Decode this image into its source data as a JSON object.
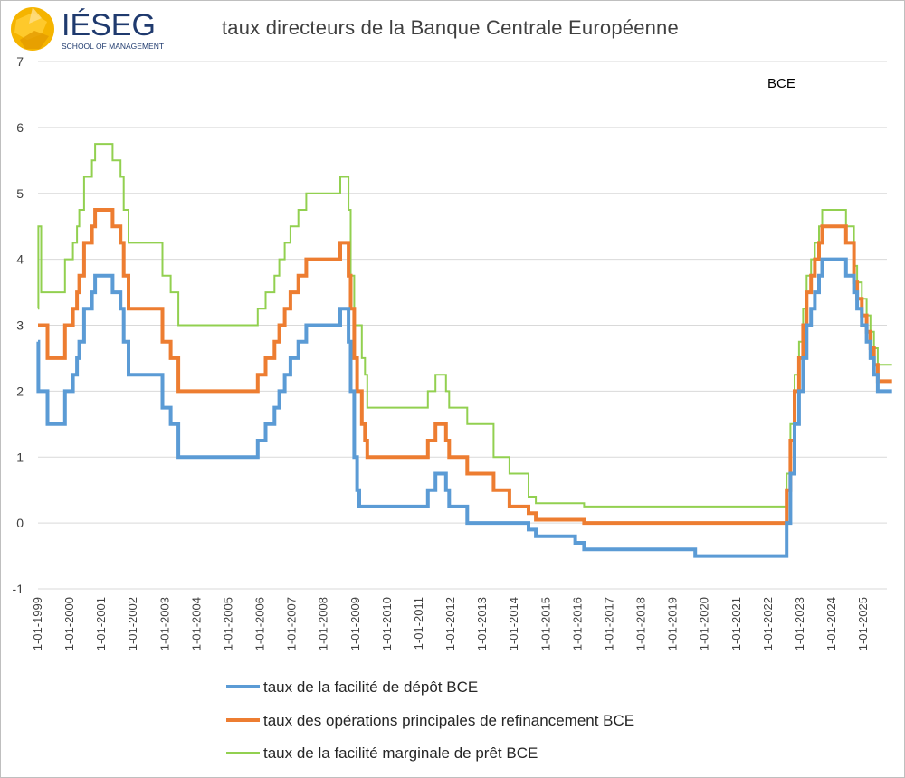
{
  "header": {
    "logo_name": "IÉSEG",
    "logo_subtitle": "SCHOOL OF MANAGEMENT",
    "title": "taux directeurs de la Banque Centrale Européenne"
  },
  "colors": {
    "deposit": "#5b9bd5",
    "refi": "#ed7d31",
    "marginal": "#92d050",
    "grid": "#d9d9d9",
    "logo_yellow": "#f5b400",
    "logo_blue": "#1f3a6e"
  },
  "chart_data": {
    "type": "line",
    "title": "taux directeurs de la Banque Centrale Européenne",
    "annotation": "BCE",
    "xlabel": "",
    "ylabel": "",
    "ylim": [
      -1,
      7
    ],
    "y_ticks": [
      -1,
      0,
      1,
      2,
      3,
      4,
      5,
      6,
      7
    ],
    "xlim": [
      1999.0,
      2025.9
    ],
    "x_ticks": [
      "1-01-1999",
      "1-01-2000",
      "1-01-2001",
      "1-01-2002",
      "1-01-2003",
      "1-01-2004",
      "1-01-2005",
      "1-01-2006",
      "1-01-2007",
      "1-01-2008",
      "1-01-2009",
      "1-01-2010",
      "1-01-2011",
      "1-01-2012",
      "1-01-2013",
      "1-01-2014",
      "1-01-2015",
      "1-01-2016",
      "1-01-2017",
      "1-01-2018",
      "1-01-2019",
      "1-01-2020",
      "1-01-2021",
      "1-01-2022",
      "1-01-2023",
      "1-01-2024",
      "1-01-2025"
    ],
    "grid": true,
    "legend_position": "bottom-left",
    "series": [
      {
        "name": "taux de la facilité de dépôt BCE",
        "key": "deposit",
        "step_points": [
          [
            1999.0,
            2.75
          ],
          [
            1999.01,
            2.0
          ],
          [
            1999.3,
            1.5
          ],
          [
            1999.85,
            2.0
          ],
          [
            2000.1,
            2.25
          ],
          [
            2000.23,
            2.5
          ],
          [
            2000.3,
            2.75
          ],
          [
            2000.45,
            3.25
          ],
          [
            2000.7,
            3.5
          ],
          [
            2000.8,
            3.75
          ],
          [
            2001.35,
            3.5
          ],
          [
            2001.6,
            3.25
          ],
          [
            2001.7,
            2.75
          ],
          [
            2001.85,
            2.25
          ],
          [
            2002.92,
            1.75
          ],
          [
            2003.18,
            1.5
          ],
          [
            2003.42,
            1.0
          ],
          [
            2005.92,
            1.25
          ],
          [
            2006.17,
            1.5
          ],
          [
            2006.45,
            1.75
          ],
          [
            2006.6,
            2.0
          ],
          [
            2006.77,
            2.25
          ],
          [
            2006.95,
            2.5
          ],
          [
            2007.2,
            2.75
          ],
          [
            2007.45,
            3.0
          ],
          [
            2008.52,
            3.25
          ],
          [
            2008.78,
            2.75
          ],
          [
            2008.85,
            2.0
          ],
          [
            2008.96,
            1.0
          ],
          [
            2009.05,
            0.5
          ],
          [
            2009.12,
            0.25
          ],
          [
            2011.28,
            0.5
          ],
          [
            2011.52,
            0.75
          ],
          [
            2011.85,
            0.5
          ],
          [
            2011.95,
            0.25
          ],
          [
            2012.52,
            0.0
          ],
          [
            2014.45,
            -0.1
          ],
          [
            2014.68,
            -0.2
          ],
          [
            2015.92,
            -0.3
          ],
          [
            2016.2,
            -0.4
          ],
          [
            2019.7,
            -0.5
          ],
          [
            2022.58,
            0.0
          ],
          [
            2022.7,
            0.75
          ],
          [
            2022.83,
            1.5
          ],
          [
            2022.97,
            2.0
          ],
          [
            2023.1,
            2.5
          ],
          [
            2023.21,
            3.0
          ],
          [
            2023.35,
            3.25
          ],
          [
            2023.47,
            3.5
          ],
          [
            2023.6,
            3.75
          ],
          [
            2023.7,
            4.0
          ],
          [
            2024.45,
            3.75
          ],
          [
            2024.7,
            3.5
          ],
          [
            2024.8,
            3.25
          ],
          [
            2024.95,
            3.0
          ],
          [
            2025.1,
            2.75
          ],
          [
            2025.22,
            2.5
          ],
          [
            2025.33,
            2.25
          ],
          [
            2025.45,
            2.0
          ],
          [
            2025.9,
            2.0
          ]
        ]
      },
      {
        "name": "taux des opérations principales de refinancement BCE",
        "key": "refi",
        "step_points": [
          [
            1999.0,
            3.0
          ],
          [
            1999.3,
            2.5
          ],
          [
            1999.85,
            3.0
          ],
          [
            2000.1,
            3.25
          ],
          [
            2000.23,
            3.5
          ],
          [
            2000.3,
            3.75
          ],
          [
            2000.45,
            4.25
          ],
          [
            2000.7,
            4.5
          ],
          [
            2000.8,
            4.75
          ],
          [
            2001.35,
            4.5
          ],
          [
            2001.6,
            4.25
          ],
          [
            2001.7,
            3.75
          ],
          [
            2001.85,
            3.25
          ],
          [
            2002.92,
            2.75
          ],
          [
            2003.18,
            2.5
          ],
          [
            2003.42,
            2.0
          ],
          [
            2005.92,
            2.25
          ],
          [
            2006.17,
            2.5
          ],
          [
            2006.45,
            2.75
          ],
          [
            2006.6,
            3.0
          ],
          [
            2006.77,
            3.25
          ],
          [
            2006.95,
            3.5
          ],
          [
            2007.2,
            3.75
          ],
          [
            2007.45,
            4.0
          ],
          [
            2008.52,
            4.25
          ],
          [
            2008.78,
            3.75
          ],
          [
            2008.85,
            3.25
          ],
          [
            2008.96,
            2.5
          ],
          [
            2009.05,
            2.0
          ],
          [
            2009.2,
            1.5
          ],
          [
            2009.3,
            1.25
          ],
          [
            2009.37,
            1.0
          ],
          [
            2011.28,
            1.25
          ],
          [
            2011.52,
            1.5
          ],
          [
            2011.85,
            1.25
          ],
          [
            2011.95,
            1.0
          ],
          [
            2012.52,
            0.75
          ],
          [
            2013.35,
            0.5
          ],
          [
            2013.85,
            0.25
          ],
          [
            2014.45,
            0.15
          ],
          [
            2014.68,
            0.05
          ],
          [
            2016.2,
            0.0
          ],
          [
            2022.58,
            0.5
          ],
          [
            2022.7,
            1.25
          ],
          [
            2022.83,
            2.0
          ],
          [
            2022.97,
            2.5
          ],
          [
            2023.1,
            3.0
          ],
          [
            2023.21,
            3.5
          ],
          [
            2023.35,
            3.75
          ],
          [
            2023.47,
            4.0
          ],
          [
            2023.6,
            4.25
          ],
          [
            2023.7,
            4.5
          ],
          [
            2024.45,
            4.25
          ],
          [
            2024.7,
            3.65
          ],
          [
            2024.8,
            3.4
          ],
          [
            2024.95,
            3.15
          ],
          [
            2025.1,
            2.9
          ],
          [
            2025.22,
            2.65
          ],
          [
            2025.33,
            2.4
          ],
          [
            2025.45,
            2.15
          ],
          [
            2025.9,
            2.15
          ]
        ]
      },
      {
        "name": "taux de la facilité marginale de prêt BCE",
        "key": "marginal",
        "step_points": [
          [
            1999.0,
            3.25
          ],
          [
            1999.01,
            4.5
          ],
          [
            1999.1,
            3.5
          ],
          [
            1999.3,
            3.5
          ],
          [
            1999.85,
            4.0
          ],
          [
            2000.1,
            4.25
          ],
          [
            2000.23,
            4.5
          ],
          [
            2000.3,
            4.75
          ],
          [
            2000.45,
            5.25
          ],
          [
            2000.7,
            5.5
          ],
          [
            2000.8,
            5.75
          ],
          [
            2001.35,
            5.5
          ],
          [
            2001.6,
            5.25
          ],
          [
            2001.7,
            4.75
          ],
          [
            2001.85,
            4.25
          ],
          [
            2002.92,
            3.75
          ],
          [
            2003.18,
            3.5
          ],
          [
            2003.42,
            3.0
          ],
          [
            2005.92,
            3.25
          ],
          [
            2006.17,
            3.5
          ],
          [
            2006.45,
            3.75
          ],
          [
            2006.6,
            4.0
          ],
          [
            2006.77,
            4.25
          ],
          [
            2006.95,
            4.5
          ],
          [
            2007.2,
            4.75
          ],
          [
            2007.45,
            5.0
          ],
          [
            2008.52,
            5.25
          ],
          [
            2008.78,
            4.75
          ],
          [
            2008.85,
            3.75
          ],
          [
            2008.96,
            3.0
          ],
          [
            2009.05,
            3.0
          ],
          [
            2009.2,
            2.5
          ],
          [
            2009.3,
            2.25
          ],
          [
            2009.37,
            1.75
          ],
          [
            2011.28,
            2.0
          ],
          [
            2011.52,
            2.25
          ],
          [
            2011.85,
            2.0
          ],
          [
            2011.95,
            1.75
          ],
          [
            2012.52,
            1.5
          ],
          [
            2013.35,
            1.0
          ],
          [
            2013.85,
            0.75
          ],
          [
            2014.45,
            0.4
          ],
          [
            2014.68,
            0.3
          ],
          [
            2016.2,
            0.25
          ],
          [
            2022.58,
            0.75
          ],
          [
            2022.7,
            1.5
          ],
          [
            2022.83,
            2.25
          ],
          [
            2022.97,
            2.75
          ],
          [
            2023.1,
            3.25
          ],
          [
            2023.21,
            3.75
          ],
          [
            2023.35,
            4.0
          ],
          [
            2023.47,
            4.25
          ],
          [
            2023.6,
            4.5
          ],
          [
            2023.7,
            4.75
          ],
          [
            2024.45,
            4.5
          ],
          [
            2024.7,
            3.9
          ],
          [
            2024.8,
            3.65
          ],
          [
            2024.95,
            3.4
          ],
          [
            2025.1,
            3.15
          ],
          [
            2025.22,
            2.9
          ],
          [
            2025.33,
            2.65
          ],
          [
            2025.45,
            2.4
          ],
          [
            2025.9,
            2.4
          ]
        ]
      }
    ]
  }
}
